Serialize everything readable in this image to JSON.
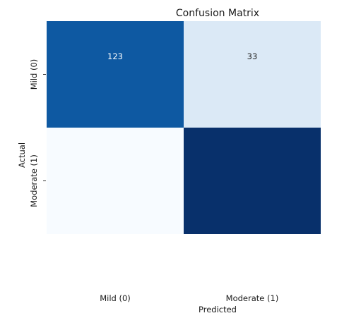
{
  "chart_data": {
    "type": "heatmap",
    "title": "Confusion Matrix",
    "xlabel": "Predicted",
    "ylabel": "Actual",
    "x_categories": [
      "Mild (0)",
      "Moderate (1)"
    ],
    "y_categories": [
      "Mild (0)",
      "Moderate (1)"
    ],
    "cells": [
      {
        "row": 0,
        "col": 0,
        "label": "123",
        "color": "#0e59a2"
      },
      {
        "row": 0,
        "col": 1,
        "label": "33",
        "color": "#dbe9f6"
      },
      {
        "row": 1,
        "col": 0,
        "label": "",
        "color": "#f7fbff"
      },
      {
        "row": 1,
        "col": 1,
        "label": "",
        "color": "#08306b"
      }
    ],
    "colormap": "Blues",
    "colorbar": false,
    "grid": false
  }
}
